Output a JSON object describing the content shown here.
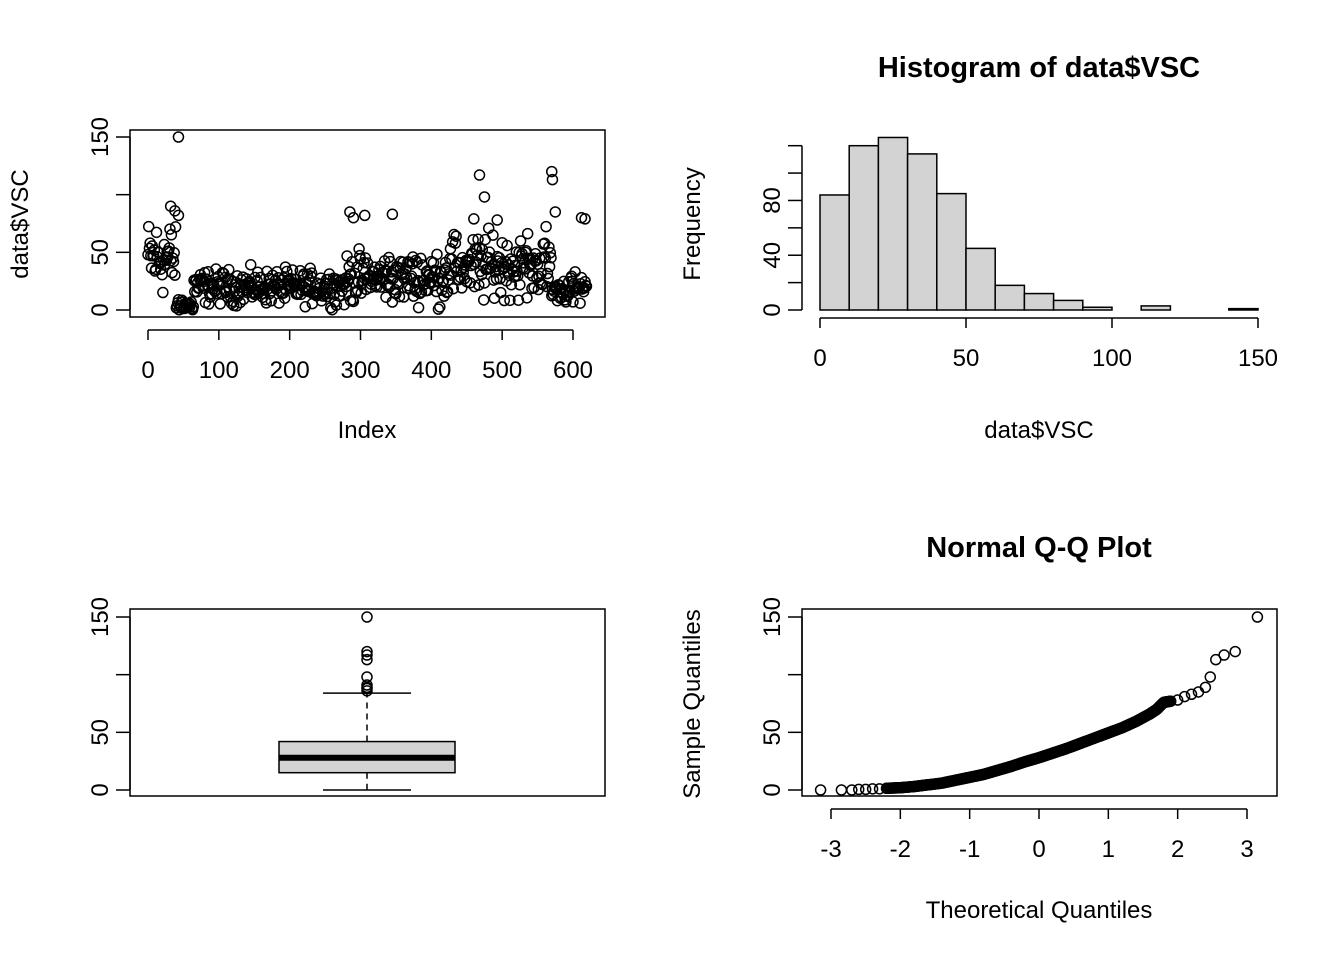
{
  "figure": {
    "background": "#ffffff",
    "bar_fill": "#d3d3d3",
    "ink": "#000000"
  },
  "chart_data": [
    {
      "type": "scatter",
      "title": "",
      "xlabel": "Index",
      "ylabel": "data$VSC",
      "xlim": [
        0,
        620
      ],
      "ylim": [
        0,
        150
      ],
      "xticks": [
        "0",
        "100",
        "200",
        "300",
        "400",
        "500",
        "600"
      ],
      "yticks": [
        "0",
        "50",
        "150"
      ],
      "n_points": 620,
      "mean_levels": [
        {
          "x_range": [
            0,
            40
          ],
          "mean": 45
        },
        {
          "x_range": [
            40,
            65
          ],
          "mean": 4
        },
        {
          "x_range": [
            65,
            280
          ],
          "mean": 20
        },
        {
          "x_range": [
            280,
            420
          ],
          "mean": 28
        },
        {
          "x_range": [
            420,
            570
          ],
          "mean": 38
        },
        {
          "x_range": [
            570,
            620
          ],
          "mean": 18
        }
      ],
      "notable_points": [
        {
          "x": 43,
          "y": 150
        },
        {
          "x": 468,
          "y": 117
        },
        {
          "x": 570,
          "y": 120
        },
        {
          "x": 571,
          "y": 113
        },
        {
          "x": 475,
          "y": 98
        },
        {
          "x": 575,
          "y": 85
        },
        {
          "x": 32,
          "y": 90
        },
        {
          "x": 38,
          "y": 86
        },
        {
          "x": 43,
          "y": 82
        },
        {
          "x": 285,
          "y": 85
        },
        {
          "x": 290,
          "y": 80
        },
        {
          "x": 345,
          "y": 83
        },
        {
          "x": 306,
          "y": 82
        },
        {
          "x": 612,
          "y": 80
        },
        {
          "x": 617,
          "y": 79
        },
        {
          "x": 493,
          "y": 78
        },
        {
          "x": 460,
          "y": 79
        }
      ]
    },
    {
      "type": "bar",
      "title": "Histogram of data$VSC",
      "xlabel": "data$VSC",
      "ylabel": "Frequency",
      "bins": [
        "0-10",
        "10-20",
        "20-30",
        "30-40",
        "40-50",
        "50-60",
        "60-70",
        "70-80",
        "80-90",
        "90-100",
        "100-110",
        "110-120",
        "120-130",
        "130-140",
        "140-150"
      ],
      "values": [
        84,
        120,
        126,
        114,
        85,
        45,
        18,
        12,
        7,
        2,
        0,
        3,
        0,
        0,
        1
      ],
      "xlim": [
        0,
        150
      ],
      "ylim": [
        0,
        130
      ],
      "xticks": [
        "0",
        "50",
        "100",
        "150"
      ],
      "yticks": [
        "0",
        "40",
        "80"
      ]
    },
    {
      "type": "boxplot",
      "title": "",
      "ylim": [
        0,
        150
      ],
      "yticks": [
        "0",
        "50",
        "150"
      ],
      "min": 0,
      "q1": 15,
      "median": 28,
      "q3": 42,
      "upper_whisker": 84,
      "outliers": [
        150,
        120,
        117,
        113,
        98,
        91,
        89,
        88,
        86
      ]
    },
    {
      "type": "scatter",
      "title": "Normal Q-Q Plot",
      "xlabel": "Theoretical Quantiles",
      "ylabel": "Sample Quantiles",
      "xlim": [
        -3.2,
        3.3
      ],
      "ylim": [
        0,
        150
      ],
      "xticks": [
        "-3",
        "-2",
        "-1",
        "0",
        "1",
        "2",
        "3"
      ],
      "yticks": [
        "0",
        "50",
        "150"
      ],
      "points": [
        [
          -3.15,
          0
        ],
        [
          -2.85,
          0
        ],
        [
          -2.7,
          0
        ],
        [
          -2.6,
          0.5
        ],
        [
          -2.5,
          0.5
        ],
        [
          -2.4,
          1
        ],
        [
          -2.3,
          1
        ],
        [
          -2.2,
          1.5
        ],
        [
          -2.0,
          2
        ],
        [
          -1.8,
          3
        ],
        [
          -1.6,
          4.5
        ],
        [
          -1.4,
          6
        ],
        [
          -1.2,
          8.5
        ],
        [
          -1.0,
          11
        ],
        [
          -0.8,
          13.5
        ],
        [
          -0.6,
          17
        ],
        [
          -0.4,
          20.5
        ],
        [
          -0.2,
          24.5
        ],
        [
          0.0,
          28
        ],
        [
          0.2,
          32
        ],
        [
          0.4,
          36
        ],
        [
          0.6,
          40.5
        ],
        [
          0.8,
          45
        ],
        [
          1.0,
          49.5
        ],
        [
          1.2,
          54
        ],
        [
          1.4,
          59.5
        ],
        [
          1.6,
          66
        ],
        [
          1.7,
          70
        ],
        [
          1.8,
          76
        ],
        [
          1.9,
          77
        ],
        [
          2.0,
          78
        ],
        [
          2.1,
          81
        ],
        [
          2.2,
          83
        ],
        [
          2.3,
          85
        ],
        [
          2.4,
          89
        ],
        [
          2.47,
          98
        ],
        [
          2.55,
          113
        ],
        [
          2.67,
          117
        ],
        [
          2.83,
          120
        ],
        [
          3.15,
          150
        ]
      ]
    }
  ]
}
